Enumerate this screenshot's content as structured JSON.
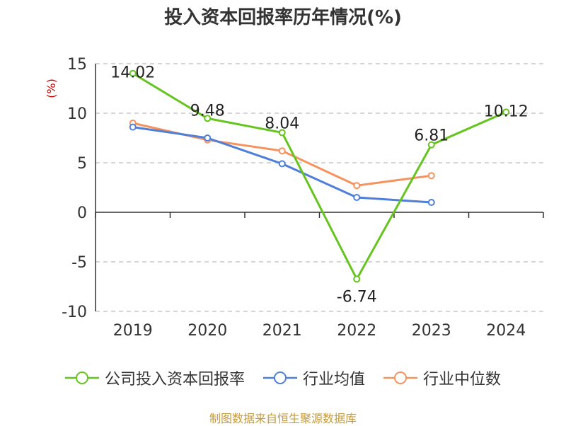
{
  "title": "投入资本回报率历年情况(%)",
  "source": "制图数据来自恒生聚源数据库",
  "colors": {
    "company": "#66c41f",
    "industry_avg": "#4f7fd9",
    "industry_median": "#f5925e",
    "axis": "#333333",
    "grid": "#c8c8c8",
    "unit": "#cc0000"
  },
  "chart_data": {
    "type": "line",
    "title": "投入资本回报率历年情况(%)",
    "ylabel": "(%)",
    "xlabel": "",
    "ylim": [
      -10,
      15
    ],
    "yticks": [
      -10,
      -5,
      0,
      5,
      10,
      15
    ],
    "grid": true,
    "legend_position": "bottom",
    "categories": [
      "2019",
      "2020",
      "2021",
      "2022",
      "2023",
      "2024"
    ],
    "series": [
      {
        "key": "company",
        "name": "公司投入资本回报率",
        "values": [
          14.02,
          9.48,
          8.04,
          -6.74,
          6.81,
          10.12
        ],
        "labels": [
          "14.02",
          "9.48",
          "8.04",
          "-6.74",
          "6.81",
          "10.12"
        ],
        "show_labels": true
      },
      {
        "key": "industry_avg",
        "name": "行业均值",
        "values": [
          8.6,
          7.5,
          4.9,
          1.5,
          1.0,
          null
        ],
        "show_labels": false
      },
      {
        "key": "industry_median",
        "name": "行业中位数",
        "values": [
          9.0,
          7.3,
          6.2,
          2.7,
          3.7,
          null
        ],
        "show_labels": false
      }
    ]
  }
}
